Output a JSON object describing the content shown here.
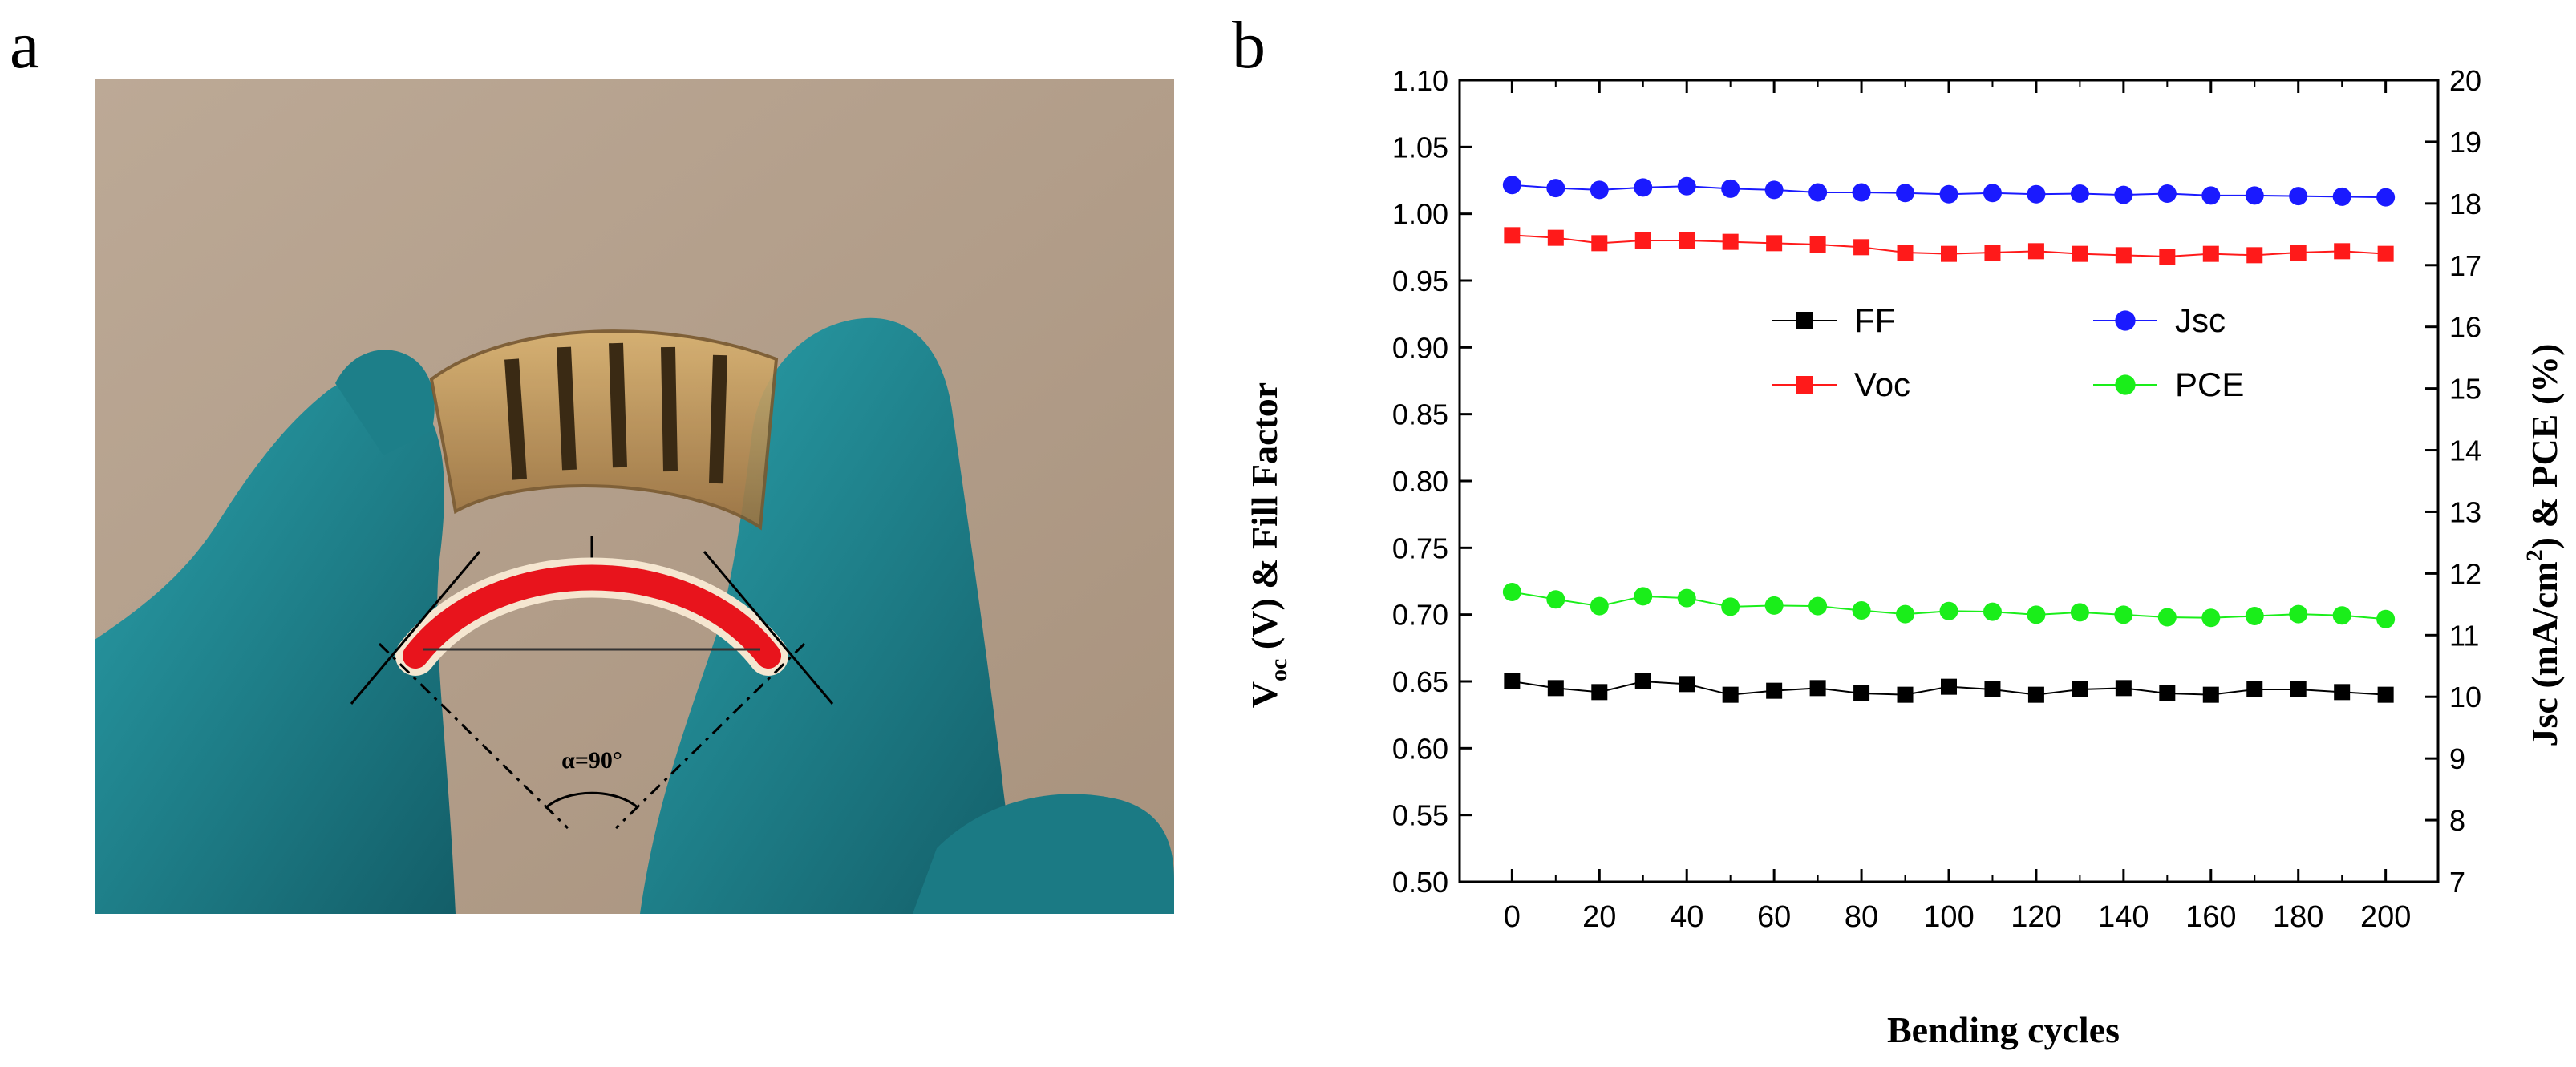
{
  "panels": {
    "a_label": "a",
    "b_label": "b"
  },
  "photo": {
    "angle_label": "α=90°",
    "colors": {
      "wall": "#b3a08c",
      "glove": "#1f8a94",
      "arc": "#e8141c"
    }
  },
  "chart_data": {
    "type": "line",
    "title": "",
    "xlabel": "Bending cycles",
    "ylabel_left": "Voc (V) & Fill Factor",
    "ylabel_left_parts": {
      "main": "V",
      "sub": "oc",
      "rest": " (V) & Fill Factor"
    },
    "ylabel_right": "Jsc (mA/cm2) & PCE (%)",
    "ylabel_right_parts": {
      "pre": "Jsc (mA/cm",
      "sup": "2",
      "post": ") & PCE (%)"
    },
    "x": [
      0,
      10,
      20,
      30,
      40,
      50,
      60,
      70,
      80,
      90,
      100,
      110,
      120,
      130,
      140,
      150,
      160,
      170,
      180,
      190,
      200
    ],
    "xlim": [
      -12,
      212
    ],
    "xticks": [
      "0",
      "20",
      "40",
      "60",
      "80",
      "100",
      "120",
      "140",
      "160",
      "180",
      "200"
    ],
    "ylim_left": [
      0.5,
      1.1
    ],
    "yticks_left": [
      "0.50",
      "0.55",
      "0.60",
      "0.65",
      "0.70",
      "0.75",
      "0.80",
      "0.85",
      "0.90",
      "0.95",
      "1.00",
      "1.05",
      "1.10"
    ],
    "ylim_right": [
      7,
      20
    ],
    "yticks_right": [
      "7",
      "8",
      "9",
      "10",
      "11",
      "12",
      "13",
      "14",
      "15",
      "16",
      "17",
      "18",
      "19",
      "20"
    ],
    "series": [
      {
        "name": "FF",
        "axis": "left",
        "marker": "square",
        "color": "#000000",
        "values": [
          0.65,
          0.645,
          0.642,
          0.65,
          0.648,
          0.64,
          0.643,
          0.645,
          0.641,
          0.64,
          0.646,
          0.644,
          0.64,
          0.644,
          0.645,
          0.641,
          0.64,
          0.644,
          0.644,
          0.642,
          0.64
        ]
      },
      {
        "name": "Voc",
        "axis": "left",
        "marker": "square",
        "color": "#ff1a1a",
        "values": [
          0.984,
          0.982,
          0.978,
          0.98,
          0.98,
          0.979,
          0.978,
          0.977,
          0.975,
          0.971,
          0.97,
          0.971,
          0.972,
          0.97,
          0.969,
          0.968,
          0.97,
          0.969,
          0.971,
          0.972,
          0.97
        ]
      },
      {
        "name": "Jsc",
        "axis": "right",
        "marker": "circle",
        "color": "#1a1aff",
        "values": [
          18.3,
          18.25,
          18.22,
          18.26,
          18.28,
          18.24,
          18.22,
          18.18,
          18.18,
          18.17,
          18.15,
          18.17,
          18.15,
          18.16,
          18.14,
          18.16,
          18.13,
          18.13,
          18.12,
          18.11,
          18.1
        ]
      },
      {
        "name": "PCE",
        "axis": "right",
        "marker": "circle",
        "color": "#1aee1a",
        "values": [
          11.7,
          11.58,
          11.47,
          11.63,
          11.6,
          11.46,
          11.48,
          11.47,
          11.4,
          11.34,
          11.39,
          11.38,
          11.33,
          11.37,
          11.33,
          11.29,
          11.28,
          11.31,
          11.34,
          11.32,
          11.26
        ]
      }
    ],
    "legend": [
      {
        "name": "FF",
        "marker": "square",
        "color": "#000000"
      },
      {
        "name": "Jsc",
        "marker": "circle",
        "color": "#1a1aff"
      },
      {
        "name": "Voc",
        "marker": "square",
        "color": "#ff1a1a"
      },
      {
        "name": "PCE",
        "marker": "circle",
        "color": "#1aee1a"
      }
    ],
    "legend_position": "center",
    "grid": false
  }
}
